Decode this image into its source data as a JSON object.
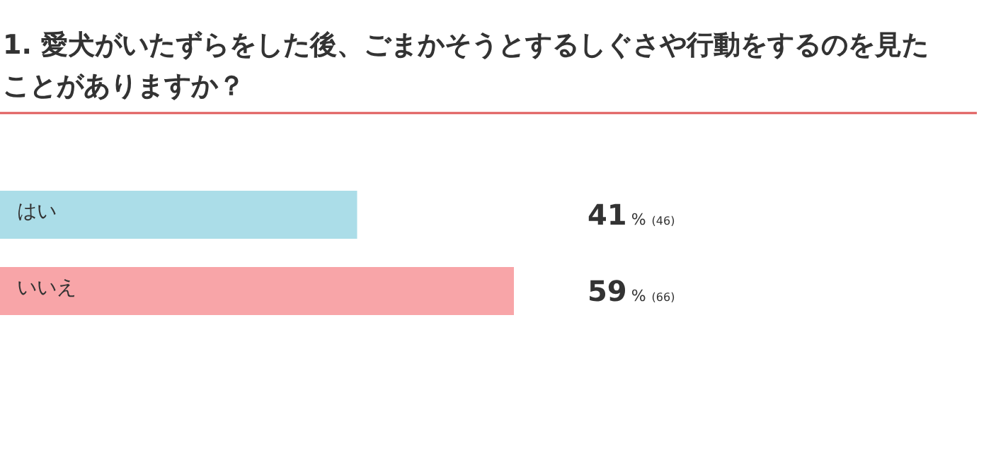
{
  "chart_data": {
    "type": "bar",
    "orientation": "horizontal",
    "title": "1. 愛犬がいたずらをした後、ごまかそうとするしぐさや行動をするのを見たことがありますか？",
    "categories": [
      "はい",
      "いいえ"
    ],
    "values": [
      41,
      59
    ],
    "colors": [
      "#abdde8",
      "#f8a5a8"
    ],
    "value_labels": [
      "41% (46)",
      "59% (66)"
    ]
  }
}
